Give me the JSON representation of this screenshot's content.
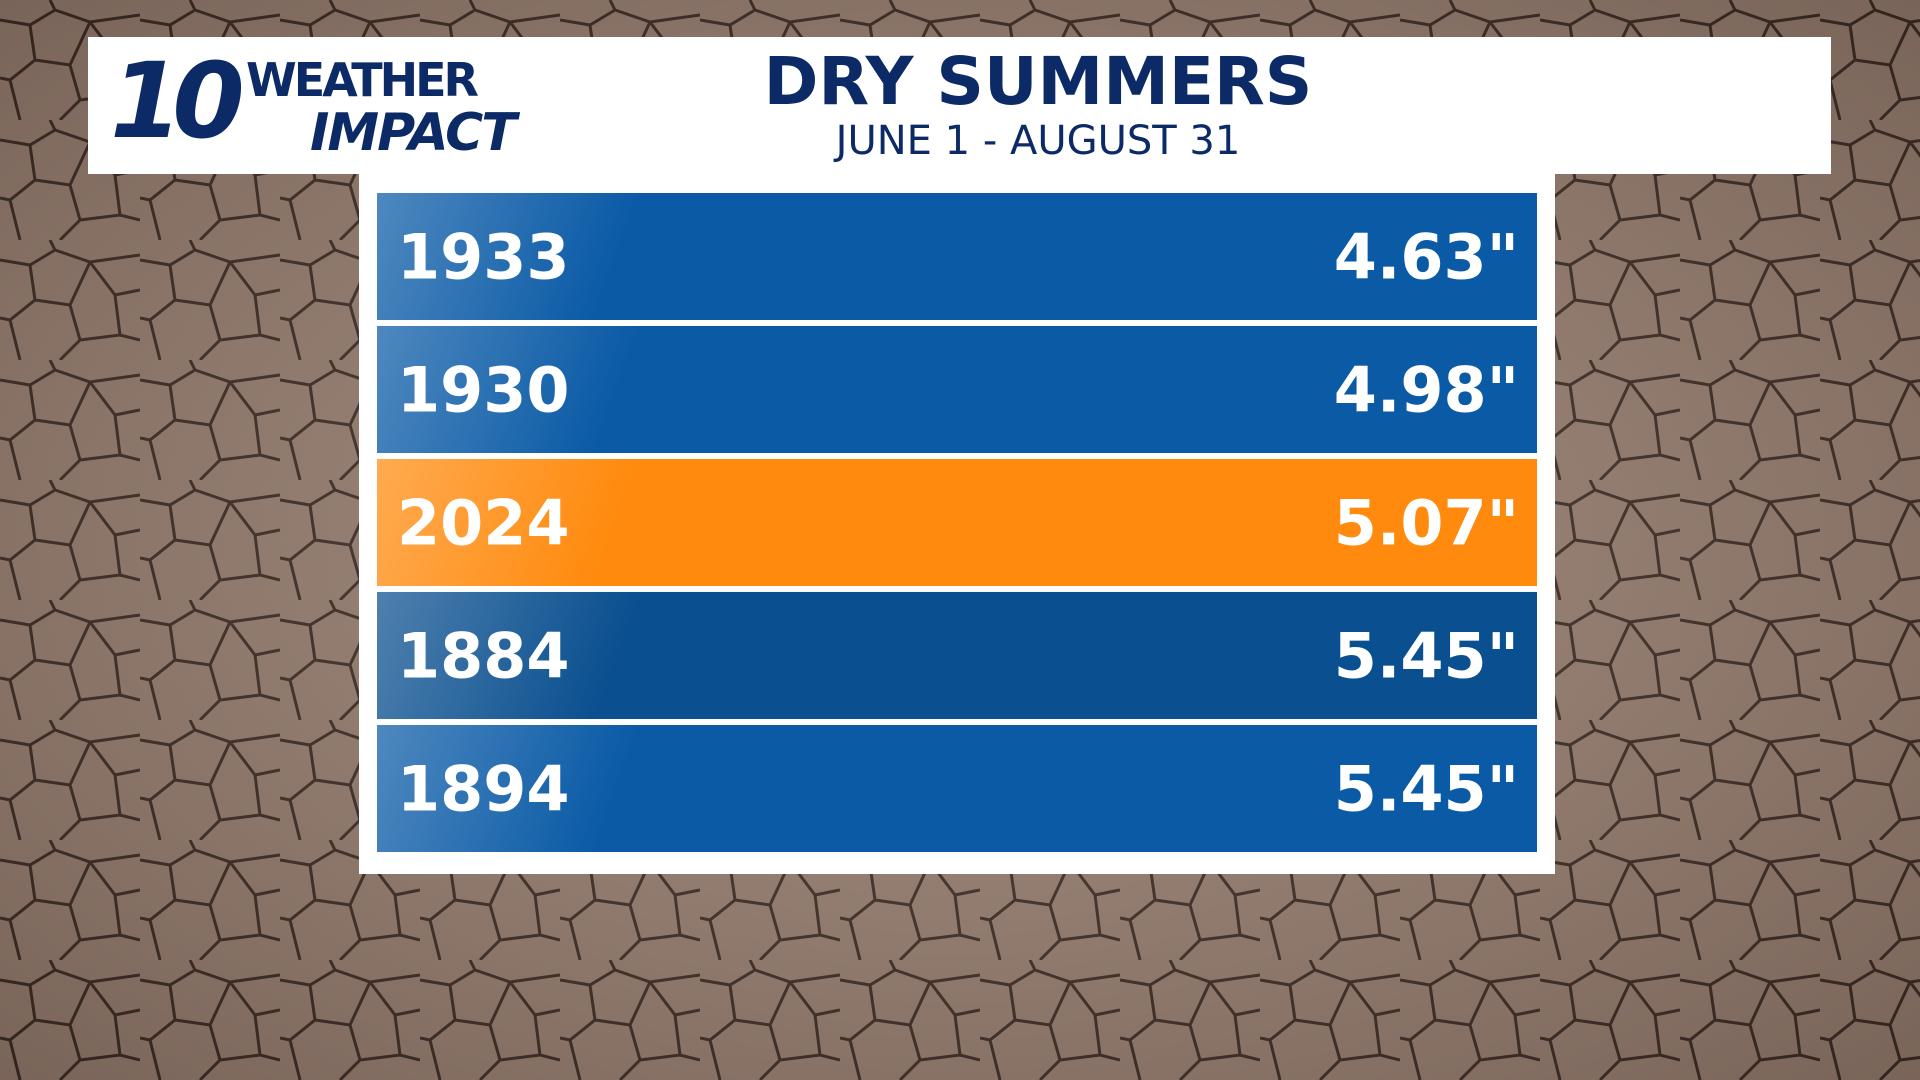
{
  "header": {
    "logo_number": "10",
    "logo_top": "WEATHER",
    "logo_bottom": "IMPACT",
    "title": "DRY SUMMERS",
    "subtitle": "JUNE 1 - AUGUST 31"
  },
  "table": {
    "rows": [
      {
        "year": "1933",
        "value": "4.63\"",
        "color": "#0a5aa6"
      },
      {
        "year": "1930",
        "value": "4.98\"",
        "color": "#0a5aa6"
      },
      {
        "year": "2024",
        "value": "5.07\"",
        "color": "#ff8a0d"
      },
      {
        "year": "1884",
        "value": "5.45\"",
        "color": "#0a4f8f"
      },
      {
        "year": "1894",
        "value": "5.45\"",
        "color": "#0a5aa6"
      }
    ]
  }
}
